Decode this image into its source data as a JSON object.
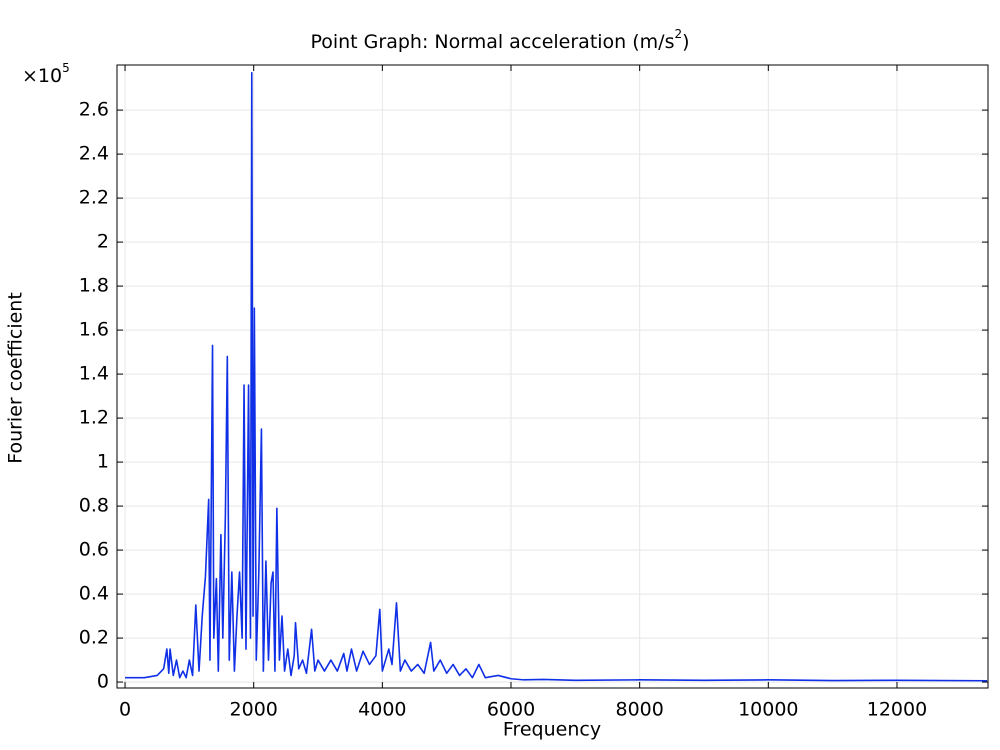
{
  "chart_data": {
    "type": "line",
    "title": "Point Graph: Normal acceleration (m/s",
    "title_sup": "2",
    "title_end": ")",
    "x_label": "Frequency",
    "y_label": "Fourier coefficient",
    "y_multiplier": "×10",
    "y_multiplier_exp": "5",
    "xlim": [
      -125,
      13415
    ],
    "ylim": [
      -0.027,
      2.805
    ],
    "xticks": [
      0,
      2000,
      4000,
      6000,
      8000,
      10000,
      12000
    ],
    "yticks": [
      0,
      0.2,
      0.4,
      0.6,
      0.8,
      1,
      1.2,
      1.4,
      1.6,
      1.8,
      2,
      2.2,
      2.4,
      2.6
    ],
    "grid": true,
    "x": [
      0,
      300,
      500,
      600,
      650,
      680,
      700,
      750,
      800,
      850,
      900,
      950,
      1000,
      1050,
      1100,
      1150,
      1200,
      1250,
      1300,
      1320,
      1360,
      1380,
      1420,
      1450,
      1490,
      1520,
      1560,
      1590,
      1620,
      1660,
      1700,
      1740,
      1780,
      1820,
      1850,
      1880,
      1920,
      1950,
      1970,
      1990,
      2010,
      2040,
      2080,
      2120,
      2150,
      2190,
      2230,
      2270,
      2300,
      2330,
      2360,
      2400,
      2440,
      2480,
      2530,
      2580,
      2630,
      2650,
      2700,
      2760,
      2820,
      2900,
      2950,
      3000,
      3100,
      3200,
      3300,
      3400,
      3450,
      3520,
      3600,
      3700,
      3800,
      3900,
      3960,
      4000,
      4100,
      4150,
      4220,
      4280,
      4350,
      4450,
      4550,
      4650,
      4750,
      4800,
      4900,
      5000,
      5100,
      5200,
      5300,
      5400,
      5500,
      5600,
      5800,
      6000,
      6200,
      6500,
      7000,
      8000,
      9000,
      10000,
      11000,
      12000,
      13400
    ],
    "series": [
      {
        "name": "Fourier coefficient",
        "color": "#1030e8",
        "values": [
          0.02,
          0.02,
          0.03,
          0.06,
          0.15,
          0.04,
          0.15,
          0.03,
          0.1,
          0.02,
          0.05,
          0.02,
          0.1,
          0.03,
          0.35,
          0.05,
          0.3,
          0.48,
          0.83,
          0.1,
          1.53,
          0.2,
          0.47,
          0.05,
          0.67,
          0.2,
          0.76,
          1.48,
          0.1,
          0.5,
          0.05,
          0.3,
          0.5,
          0.2,
          1.35,
          0.15,
          1.35,
          0.2,
          2.77,
          0.3,
          1.7,
          0.1,
          0.5,
          1.15,
          0.05,
          0.55,
          0.1,
          0.45,
          0.5,
          0.05,
          0.79,
          0.1,
          0.3,
          0.05,
          0.15,
          0.03,
          0.12,
          0.27,
          0.06,
          0.1,
          0.04,
          0.24,
          0.05,
          0.1,
          0.05,
          0.1,
          0.05,
          0.13,
          0.05,
          0.15,
          0.05,
          0.14,
          0.08,
          0.12,
          0.33,
          0.05,
          0.15,
          0.08,
          0.36,
          0.05,
          0.1,
          0.05,
          0.08,
          0.04,
          0.18,
          0.05,
          0.1,
          0.04,
          0.08,
          0.03,
          0.06,
          0.02,
          0.08,
          0.02,
          0.03,
          0.015,
          0.01,
          0.012,
          0.008,
          0.01,
          0.008,
          0.01,
          0.007,
          0.008,
          0.006
        ]
      }
    ]
  }
}
